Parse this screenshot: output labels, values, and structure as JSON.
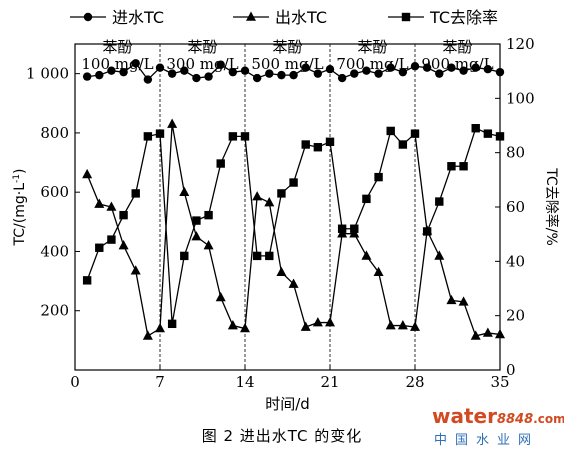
{
  "chart_data": {
    "type": "line",
    "xlabel": "时间/d",
    "ylabel_left": "TC/(mg·L",
    "ylabel_left_sup": "-1",
    "ylabel_left_close": ")",
    "ylabel_right": "TC去除率/%",
    "xlim": [
      0,
      35
    ],
    "ylim_left": [
      0,
      1100
    ],
    "ylim_right": [
      0,
      120
    ],
    "x_ticks": [
      0,
      7,
      14,
      21,
      28,
      35
    ],
    "x_tick_labels": [
      "0",
      "7",
      "14",
      "21",
      "28",
      "35"
    ],
    "y_left_ticks": [
      200,
      400,
      600,
      800,
      1000
    ],
    "y_left_tick_labels": [
      "200",
      "400",
      "600",
      "800",
      "1 000"
    ],
    "y_right_ticks": [
      0,
      20,
      40,
      60,
      80,
      100,
      120
    ],
    "y_right_tick_labels": [
      "0",
      "20",
      "40",
      "60",
      "80",
      "100",
      "120"
    ],
    "phase_dividers": [
      7,
      14,
      21,
      28
    ],
    "phases": [
      {
        "name": "苯酚",
        "conc": "100 mg/L",
        "x_center": 3.5
      },
      {
        "name": "苯酚",
        "conc": "300 mg/L",
        "x_center": 10.5
      },
      {
        "name": "苯酚",
        "conc": "500 mg/L",
        "x_center": 17.5
      },
      {
        "name": "苯酚",
        "conc": "700 mg/L",
        "x_center": 24.5
      },
      {
        "name": "苯酚",
        "conc": "900 mg/L",
        "x_center": 31.5
      }
    ],
    "legend_position": "top",
    "grid": false,
    "series": [
      {
        "name": "进水TC",
        "marker": "circle",
        "axis": "left",
        "x": [
          1,
          2,
          3,
          4,
          5,
          6,
          7,
          8,
          9,
          10,
          11,
          12,
          13,
          14,
          15,
          16,
          17,
          18,
          19,
          20,
          21,
          22,
          23,
          24,
          25,
          26,
          27,
          28,
          29,
          30,
          31,
          32,
          33,
          34,
          35
        ],
        "y": [
          990,
          995,
          1010,
          1005,
          1035,
          980,
          1020,
          1000,
          1010,
          985,
          990,
          1030,
          1005,
          1010,
          985,
          1000,
          995,
          995,
          1020,
          1000,
          1015,
          985,
          1000,
          1010,
          1000,
          1020,
          1005,
          1025,
          1020,
          1000,
          1020,
          1010,
          1020,
          1015,
          1005
        ]
      },
      {
        "name": "出水TC",
        "marker": "triangle",
        "axis": "left",
        "x": [
          1,
          2,
          3,
          4,
          5,
          6,
          7,
          8,
          9,
          10,
          11,
          12,
          13,
          14,
          15,
          16,
          17,
          18,
          19,
          20,
          21,
          22,
          23,
          24,
          25,
          26,
          27,
          28,
          29,
          30,
          31,
          32,
          33,
          34,
          35
        ],
        "y": [
          660,
          560,
          550,
          420,
          335,
          115,
          140,
          830,
          600,
          450,
          420,
          245,
          150,
          140,
          585,
          565,
          330,
          290,
          145,
          160,
          160,
          460,
          460,
          385,
          330,
          150,
          150,
          145,
          470,
          385,
          235,
          230,
          115,
          125,
          120
        ]
      },
      {
        "name": "TC去除率",
        "marker": "square",
        "axis": "right",
        "x": [
          1,
          2,
          3,
          4,
          5,
          6,
          7,
          8,
          9,
          10,
          11,
          12,
          13,
          14,
          15,
          16,
          17,
          18,
          19,
          20,
          21,
          22,
          23,
          24,
          25,
          26,
          27,
          28,
          29,
          30,
          31,
          32,
          33,
          34,
          35
        ],
        "y": [
          33,
          45,
          48,
          57,
          65,
          86,
          87,
          17,
          42,
          55,
          57,
          76,
          86,
          86,
          42,
          42,
          65,
          69,
          83,
          82,
          84,
          52,
          52,
          63,
          71,
          88,
          83,
          87,
          51,
          62,
          75,
          75,
          89,
          87,
          86
        ]
      }
    ]
  },
  "caption": "图 2   进出水TC 的变化",
  "watermark": {
    "word": "water",
    "number": "8848",
    "suffix": ".com",
    "site_name": "中国水业网"
  }
}
